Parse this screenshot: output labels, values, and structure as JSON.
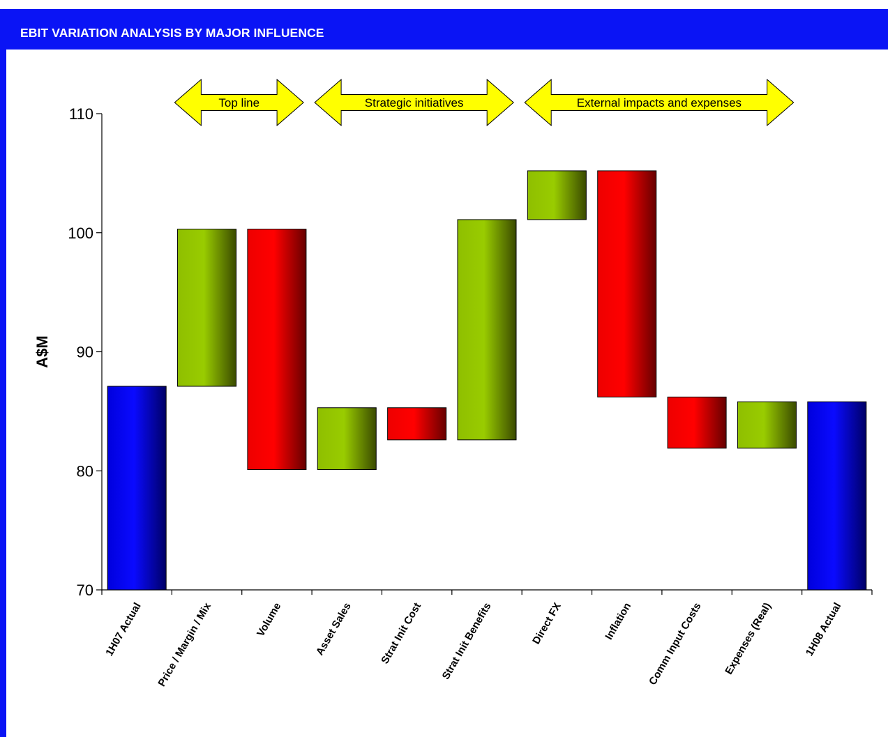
{
  "header": {
    "title": "EBIT VARIATION ANALYSIS BY MAJOR INFLUENCE"
  },
  "colors": {
    "header_bg": "#0a14f5",
    "total": "#0000ee",
    "increase": "#99cc00",
    "decrease": "#ff0000",
    "arrow": "#ffff00"
  },
  "chart_data": {
    "type": "bar",
    "subtype": "waterfall",
    "title": "EBIT VARIATION ANALYSIS BY MAJOR INFLUENCE",
    "xlabel": "",
    "ylabel": "A$M",
    "ylim": [
      70,
      110
    ],
    "yticks": [
      70,
      80,
      90,
      100,
      110
    ],
    "categories": [
      "1H07 Actual",
      "Price / Margin / Mix",
      "Volume",
      "Asset Sales",
      "Strat Init Cost",
      "Strat Init Benefits",
      "Direct FX",
      "Inflation",
      "Comm Input Costs",
      "Expenses (Real)",
      "1H08 Actual"
    ],
    "kinds": [
      "total",
      "increase",
      "decrease",
      "increase",
      "decrease",
      "increase",
      "increase",
      "decrease",
      "decrease",
      "increase",
      "total"
    ],
    "bar_ranges": [
      [
        70,
        87.1
      ],
      [
        87.1,
        100.3
      ],
      [
        80.1,
        100.3
      ],
      [
        80.1,
        85.3
      ],
      [
        82.6,
        85.3
      ],
      [
        82.6,
        101.1
      ],
      [
        101.1,
        105.2
      ],
      [
        86.2,
        105.2
      ],
      [
        81.9,
        86.2
      ],
      [
        81.9,
        85.8
      ],
      [
        70,
        85.8
      ]
    ],
    "grid": false,
    "legend": "none",
    "group_arrows": [
      {
        "label": "Top line",
        "from_category": "Price / Margin / Mix",
        "to_category": "Volume"
      },
      {
        "label": "Strategic initiatives",
        "from_category": "Asset Sales",
        "to_category": "Strat Init Benefits"
      },
      {
        "label": "External impacts and expenses",
        "from_category": "Direct FX",
        "to_category": "Expenses (Real)"
      }
    ]
  }
}
